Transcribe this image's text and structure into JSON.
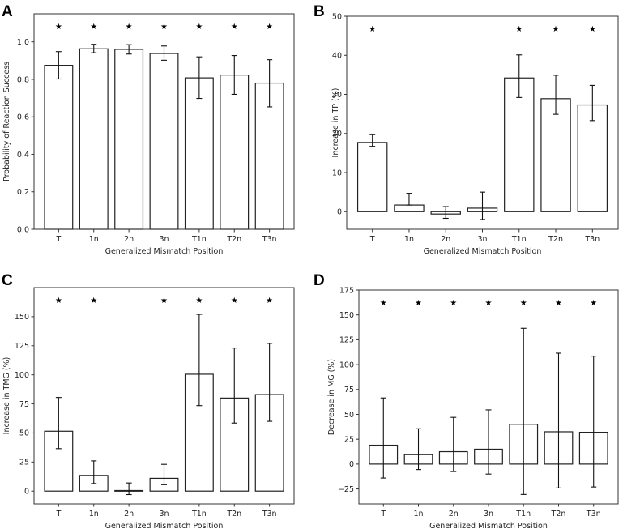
{
  "figure": {
    "panels": [
      "A",
      "B",
      "C",
      "D"
    ]
  },
  "chart_data": [
    {
      "panel": "A",
      "type": "bar",
      "title": "",
      "xlabel": "Generalized Mismatch Position",
      "ylabel": "Probability of Reaction Success",
      "categories": [
        "T",
        "1n",
        "2n",
        "3n",
        "T1n",
        "T2n",
        "T3n"
      ],
      "values": [
        0.875,
        0.963,
        0.96,
        0.938,
        0.808,
        0.823,
        0.78
      ],
      "error_low": [
        0.802,
        0.942,
        0.935,
        0.902,
        0.698,
        0.72,
        0.653
      ],
      "error_high": [
        0.948,
        0.987,
        0.985,
        0.978,
        0.92,
        0.927,
        0.905
      ],
      "significant": [
        true,
        true,
        true,
        true,
        true,
        true,
        true
      ],
      "yticks": [
        "0.0",
        "0.2",
        "0.4",
        "0.6",
        "0.8",
        "1.0"
      ],
      "ytick_values": [
        0,
        0.2,
        0.4,
        0.6,
        0.8,
        1.0
      ],
      "ylim": [
        0,
        1.15
      ],
      "grid": false
    },
    {
      "panel": "B",
      "type": "bar",
      "title": "",
      "xlabel": "Generalized Mismatch Position",
      "ylabel": "Increase in TP (%)",
      "categories": [
        "T",
        "1n",
        "2n",
        "3n",
        "T1n",
        "T2n",
        "T3n"
      ],
      "values": [
        17.7,
        1.7,
        -0.6,
        0.9,
        34.2,
        28.9,
        27.3
      ],
      "error_low": [
        16.7,
        1.7,
        -1.7,
        -2.0,
        29.2,
        24.9,
        23.3
      ],
      "error_high": [
        19.7,
        4.7,
        1.3,
        5.0,
        40.1,
        34.9,
        32.3
      ],
      "significant": [
        true,
        false,
        false,
        false,
        true,
        true,
        true
      ],
      "yticks": [
        "0",
        "10",
        "20",
        "30",
        "40",
        "50"
      ],
      "ytick_values": [
        0,
        10,
        20,
        30,
        40,
        50
      ],
      "ylim": [
        -4.5,
        50
      ],
      "grid": false
    },
    {
      "panel": "C",
      "type": "bar",
      "title": "",
      "xlabel": "Generalized Mismatch Position",
      "ylabel": "Increase in TMG (%)",
      "categories": [
        "T",
        "1n",
        "2n",
        "3n",
        "T1n",
        "T2n",
        "T3n"
      ],
      "values": [
        51.5,
        13.5,
        0.5,
        11.0,
        100.5,
        80.0,
        83.0
      ],
      "error_low": [
        36.5,
        6.5,
        -3.0,
        5.5,
        73.5,
        58.5,
        60.0
      ],
      "error_high": [
        80.5,
        26.0,
        7.0,
        23.0,
        152.0,
        123.0,
        127.0
      ],
      "significant": [
        true,
        true,
        false,
        true,
        true,
        true,
        true
      ],
      "yticks": [
        "0",
        "25",
        "50",
        "75",
        "100",
        "125",
        "150"
      ],
      "ytick_values": [
        0,
        25,
        50,
        75,
        100,
        125,
        150
      ],
      "ylim": [
        -11,
        175
      ],
      "grid": false
    },
    {
      "panel": "D",
      "type": "bar",
      "title": "",
      "xlabel": "Generalized Mismatch Position",
      "ylabel": "Decrease in MG (%)",
      "categories": [
        "T",
        "1n",
        "2n",
        "3n",
        "T1n",
        "T2n",
        "T3n"
      ],
      "values": [
        19.0,
        9.5,
        12.5,
        15.0,
        40.0,
        32.5,
        32.0
      ],
      "error_low": [
        -14.0,
        -5.5,
        -7.5,
        -10.0,
        -30.5,
        -24.0,
        -23.0
      ],
      "error_high": [
        66.5,
        35.5,
        47.0,
        54.5,
        136.5,
        111.5,
        108.5
      ],
      "significant": [
        true,
        true,
        true,
        true,
        true,
        true,
        true
      ],
      "yticks": [
        "−25",
        "0",
        "25",
        "50",
        "75",
        "100",
        "125",
        "150",
        "175"
      ],
      "ytick_values": [
        -25,
        0,
        25,
        50,
        75,
        100,
        125,
        150,
        175
      ],
      "ylim": [
        -40,
        175
      ],
      "grid": false
    }
  ],
  "colors": {
    "bar_fill": "#ffffff",
    "bar_edge": "#222222",
    "axis": "#333333",
    "text": "#222222"
  },
  "significance_marker": "★"
}
